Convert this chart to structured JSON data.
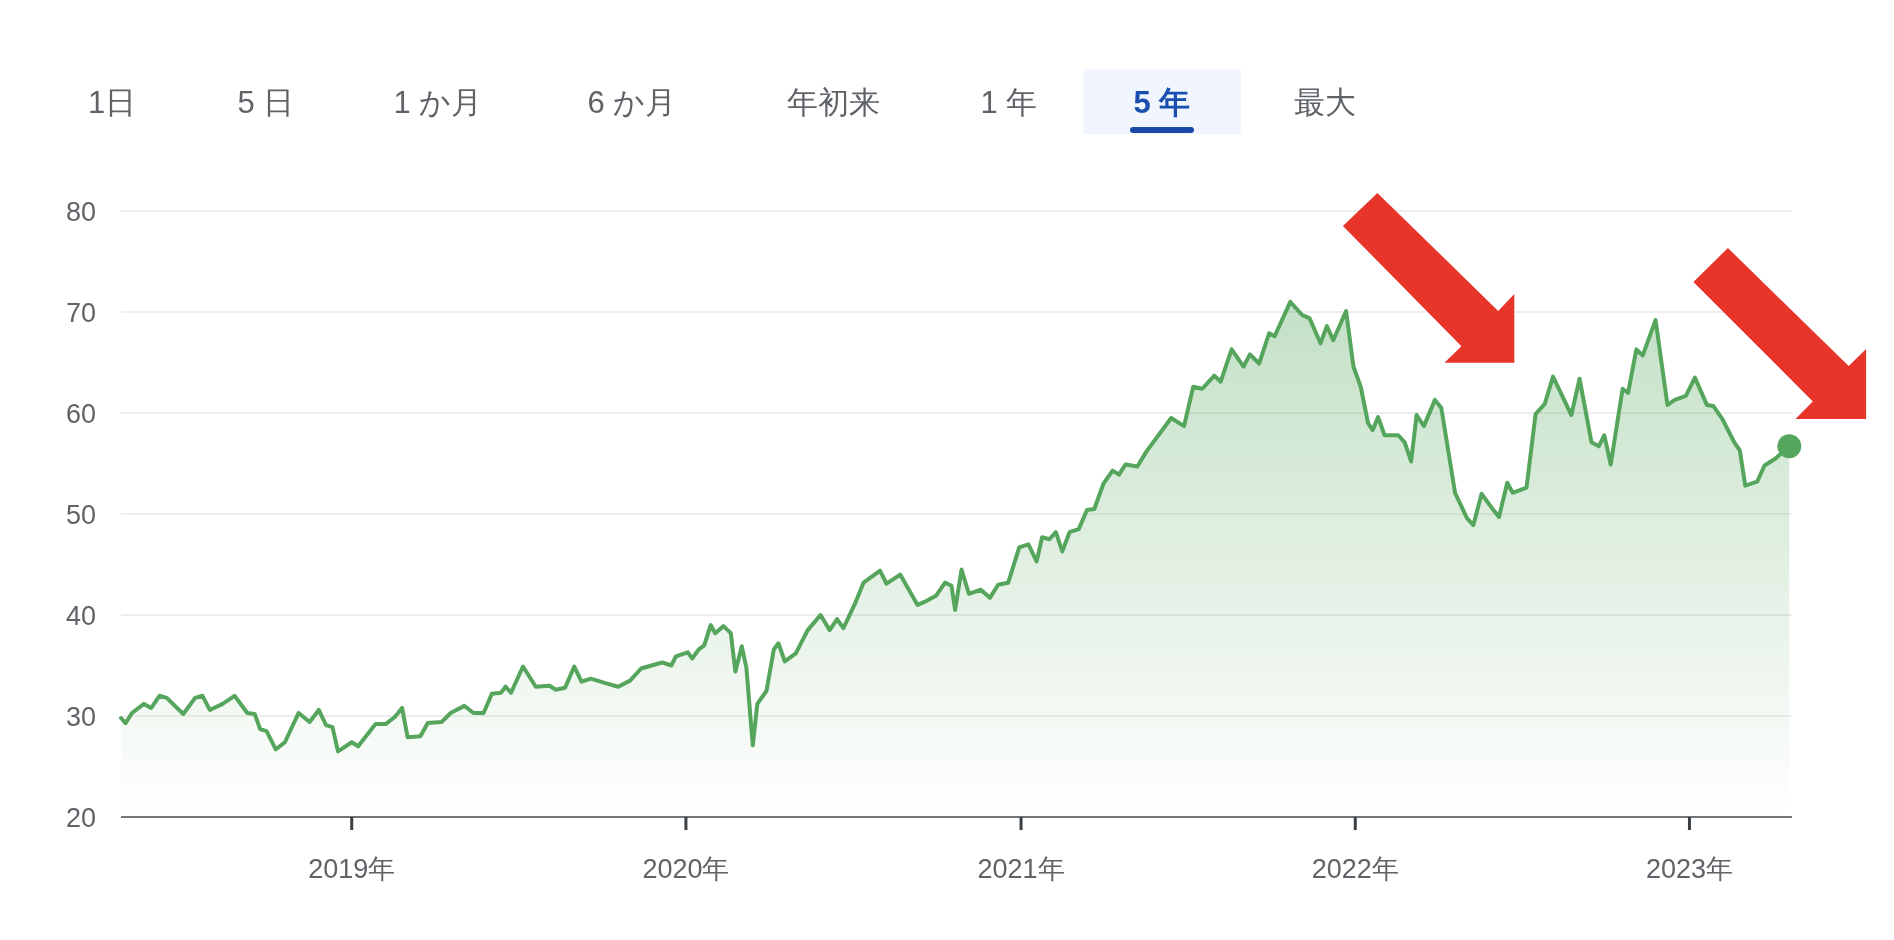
{
  "chart_data": {
    "type": "area",
    "annotations": [
      "1日",
      "5 日",
      "1 か月",
      "6 か月",
      "年初来",
      "1 年",
      "5 年",
      "最大"
    ],
    "color": "#55a65c",
    "x": [
      "2018-04-24",
      "2018-04-29",
      "2018-05-06",
      "2018-05-19",
      "2018-05-27",
      "2018-06-05",
      "2018-06-13",
      "2018-07-01",
      "2018-07-14",
      "2018-07-22",
      "2018-07-30",
      "2018-08-13",
      "2018-08-26",
      "2018-09-09",
      "2018-09-17",
      "2018-09-23",
      "2018-09-30",
      "2018-10-10",
      "2018-10-20",
      "2018-11-04",
      "2018-11-16",
      "2018-11-26",
      "2018-12-04",
      "2018-12-11",
      "2018-12-17",
      "2019-01-01",
      "2019-01-08",
      "2019-01-27",
      "2019-02-07",
      "2019-02-17",
      "2019-02-25",
      "2019-03-03",
      "2019-03-17",
      "2019-03-25",
      "2019-04-09",
      "2019-04-19",
      "2019-05-04",
      "2019-05-14",
      "2019-05-25",
      "2019-06-03",
      "2019-06-13",
      "2019-06-18",
      "2019-06-24",
      "2019-07-07",
      "2019-07-21",
      "2019-08-05",
      "2019-08-12",
      "2019-08-22",
      "2019-09-01",
      "2019-09-09",
      "2019-09-19",
      "2019-10-07",
      "2019-10-19",
      "2019-11-01",
      "2019-11-13",
      "2019-12-06",
      "2019-12-16",
      "2019-12-21",
      "2020-01-03",
      "2020-01-08",
      "2020-01-15",
      "2020-01-21",
      "2020-01-28",
      "2020-02-02",
      "2020-02-11",
      "2020-02-19",
      "2020-02-24",
      "2020-03-02",
      "2020-03-07",
      "2020-03-14",
      "2020-03-19",
      "2020-03-29",
      "2020-04-06",
      "2020-04-11",
      "2020-04-18",
      "2020-04-30",
      "2020-05-13",
      "2020-05-27",
      "2020-06-06",
      "2020-06-14",
      "2020-06-21",
      "2020-07-03",
      "2020-07-13",
      "2020-07-31",
      "2020-08-07",
      "2020-08-22",
      "2020-09-10",
      "2020-09-20",
      "2020-09-30",
      "2020-10-10",
      "2020-10-17",
      "2020-10-21",
      "2020-10-28",
      "2020-11-05",
      "2020-11-18",
      "2020-11-28",
      "2020-12-07",
      "2020-12-18",
      "2020-12-30",
      "2021-01-09",
      "2021-01-18",
      "2021-01-24",
      "2021-02-01",
      "2021-02-08",
      "2021-02-15",
      "2021-02-23",
      "2021-03-05",
      "2021-03-14",
      "2021-03-22",
      "2021-04-01",
      "2021-04-11",
      "2021-04-18",
      "2021-04-25",
      "2021-05-08",
      "2021-05-18",
      "2021-06-14",
      "2021-06-28",
      "2021-07-08",
      "2021-07-18",
      "2021-07-31",
      "2021-08-07",
      "2021-08-19",
      "2021-09-01",
      "2021-09-08",
      "2021-09-18",
      "2021-09-29",
      "2021-10-05",
      "2021-10-22",
      "2021-11-04",
      "2021-11-12",
      "2021-11-24",
      "2021-12-01",
      "2021-12-08",
      "2021-12-22",
      "2021-12-30",
      "2022-01-07",
      "2022-01-15",
      "2022-01-20",
      "2022-01-26",
      "2022-02-02",
      "2022-02-17",
      "2022-02-24",
      "2022-03-03",
      "2022-03-09",
      "2022-03-17",
      "2022-03-29",
      "2022-04-05",
      "2022-04-20",
      "2022-05-03",
      "2022-05-10",
      "2022-05-19",
      "2022-05-31",
      "2022-06-07",
      "2022-06-16",
      "2022-06-22",
      "2022-07-07",
      "2022-07-17",
      "2022-07-27",
      "2022-08-05",
      "2022-08-14",
      "2022-08-25",
      "2022-09-03",
      "2022-09-16",
      "2022-09-24",
      "2022-09-30",
      "2022-10-07",
      "2022-10-20",
      "2022-10-26",
      "2022-11-04",
      "2022-11-11",
      "2022-11-25",
      "2022-12-08",
      "2022-12-16",
      "2022-12-28",
      "2023-01-07",
      "2023-01-20",
      "2023-01-27",
      "2023-02-06",
      "2023-02-19",
      "2023-02-25",
      "2023-03-03",
      "2023-03-16",
      "2023-03-24",
      "2023-04-05",
      "2023-04-20"
    ],
    "values": [
      29.8,
      29.3,
      30.3,
      31.2,
      30.8,
      32.0,
      31.8,
      30.2,
      31.8,
      32.0,
      30.6,
      31.2,
      32.0,
      30.3,
      30.2,
      28.7,
      28.5,
      26.7,
      27.4,
      30.3,
      29.4,
      30.6,
      29.1,
      28.9,
      26.5,
      27.4,
      27.0,
      29.2,
      29.2,
      29.9,
      30.8,
      27.9,
      28.0,
      29.3,
      29.4,
      30.3,
      31.0,
      30.3,
      30.3,
      32.2,
      32.3,
      32.9,
      32.3,
      34.9,
      32.9,
      33.0,
      32.6,
      32.8,
      34.9,
      33.4,
      33.7,
      33.2,
      32.9,
      33.5,
      34.7,
      35.3,
      35.0,
      35.9,
      36.3,
      35.7,
      36.6,
      37.0,
      39.0,
      38.2,
      38.9,
      38.2,
      34.4,
      36.9,
      34.8,
      27.1,
      31.2,
      32.5,
      36.6,
      37.2,
      35.4,
      36.2,
      38.5,
      40.0,
      38.5,
      39.6,
      38.7,
      41.0,
      43.2,
      44.4,
      43.1,
      44.0,
      41.0,
      41.4,
      41.9,
      43.2,
      42.9,
      40.5,
      44.5,
      42.1,
      42.5,
      41.7,
      43.0,
      43.2,
      46.7,
      47.0,
      45.3,
      47.7,
      47.5,
      48.2,
      46.3,
      48.2,
      48.5,
      50.4,
      50.5,
      53.0,
      54.3,
      53.9,
      54.9,
      54.7,
      56.2,
      59.5,
      58.7,
      62.6,
      62.4,
      63.7,
      63.1,
      66.3,
      64.6,
      65.8,
      64.9,
      67.9,
      67.6,
      71.0,
      69.7,
      69.4,
      66.9,
      68.6,
      67.2,
      70.1,
      64.6,
      62.6,
      59.0,
      58.3,
      59.6,
      57.8,
      57.8,
      57.1,
      55.2,
      59.8,
      58.7,
      61.3,
      60.5,
      52.1,
      49.6,
      48.9,
      52.0,
      50.5,
      49.7,
      53.1,
      52.1,
      52.6,
      59.9,
      60.9,
      63.6,
      61.9,
      59.8,
      63.4,
      57.1,
      56.7,
      57.8,
      54.9,
      62.4,
      62.0,
      66.3,
      65.7,
      69.2,
      60.8,
      61.3,
      61.7,
      63.5,
      60.8,
      60.7,
      59.4,
      57.1,
      56.3,
      52.8,
      53.2,
      54.8,
      55.5,
      56.7
    ],
    "xlim": [
      "2018-04-24",
      "2023-04-23"
    ],
    "xticks": [
      {
        "value": "2019-01-01",
        "label": "2019年"
      },
      {
        "value": "2020-01-01",
        "label": "2020年"
      },
      {
        "value": "2021-01-01",
        "label": "2021年"
      },
      {
        "value": "2022-01-01",
        "label": "2022年"
      },
      {
        "value": "2023-01-01",
        "label": "2023年"
      }
    ],
    "ylim": [
      20,
      80
    ],
    "yticks": [
      20,
      30,
      40,
      50,
      60,
      70,
      80
    ],
    "grid": "y"
  }
}
